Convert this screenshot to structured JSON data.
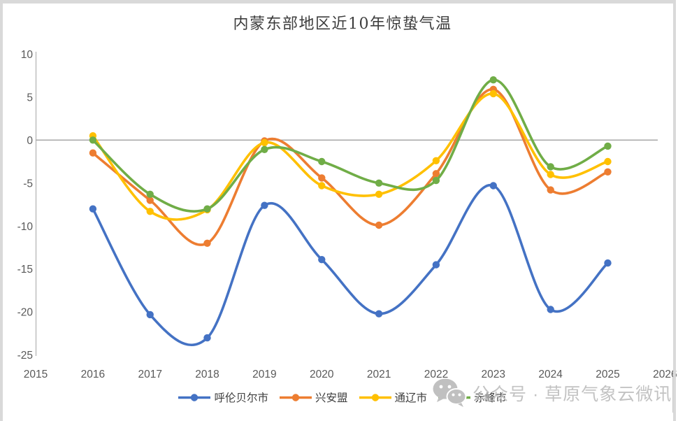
{
  "chart_data": {
    "type": "line",
    "title": "内蒙东部地区近10年惊蛰气温",
    "categories": [
      2016,
      2017,
      2018,
      2019,
      2020,
      2021,
      2022,
      2023,
      2024,
      2025
    ],
    "series": [
      {
        "id": "hulunbuir",
        "name": "呼伦贝尔市",
        "color": "#4472C4",
        "values": [
          -8.0,
          -20.3,
          -23.0,
          -7.6,
          -13.9,
          -20.2,
          -14.5,
          -5.3,
          -19.7,
          -14.3
        ]
      },
      {
        "id": "xingan-league",
        "name": "兴安盟",
        "color": "#ED7D31",
        "values": [
          -1.5,
          -7.0,
          -12.0,
          -0.1,
          -4.4,
          -9.9,
          -3.9,
          5.9,
          -5.8,
          -3.7
        ]
      },
      {
        "id": "tongliao",
        "name": "通辽市",
        "color": "#FFC000",
        "values": [
          0.5,
          -8.3,
          -8.1,
          -0.3,
          -5.3,
          -6.3,
          -2.4,
          5.4,
          -4.0,
          -2.5
        ]
      },
      {
        "id": "chifeng",
        "name": "赤峰市",
        "color": "#70AD47",
        "values": [
          0.0,
          -6.3,
          -8.0,
          -1.1,
          -2.5,
          -5.0,
          -4.7,
          7.0,
          -3.1,
          -0.7
        ]
      }
    ],
    "x_axis_ticks": [
      2015,
      2016,
      2017,
      2018,
      2019,
      2020,
      2021,
      2022,
      2023,
      2024,
      2025,
      2026
    ],
    "y_axis_ticks": [
      10,
      5,
      0,
      -5,
      -10,
      -15,
      -20,
      -25
    ],
    "xlim": [
      2015,
      2026
    ],
    "ylim": [
      -25,
      10
    ],
    "grid": false,
    "smooth": true,
    "marker": "circle",
    "legend_position": "bottom",
    "legend": [
      "呼伦贝尔市",
      "兴安盟",
      "通辽市",
      "赤峰市"
    ]
  },
  "colors": {
    "axis_line": "#bfbfbf",
    "zero_line": "#ababab",
    "tick_label": "#595959",
    "title_text": "#3d3d3d",
    "legend_text": "#3f3f3f",
    "watermark": "#c3c3c3",
    "frame": "#d9d9d9"
  },
  "watermark": {
    "icon": "wechat-icon",
    "text": "公众号 · 草原气象云微讯"
  }
}
